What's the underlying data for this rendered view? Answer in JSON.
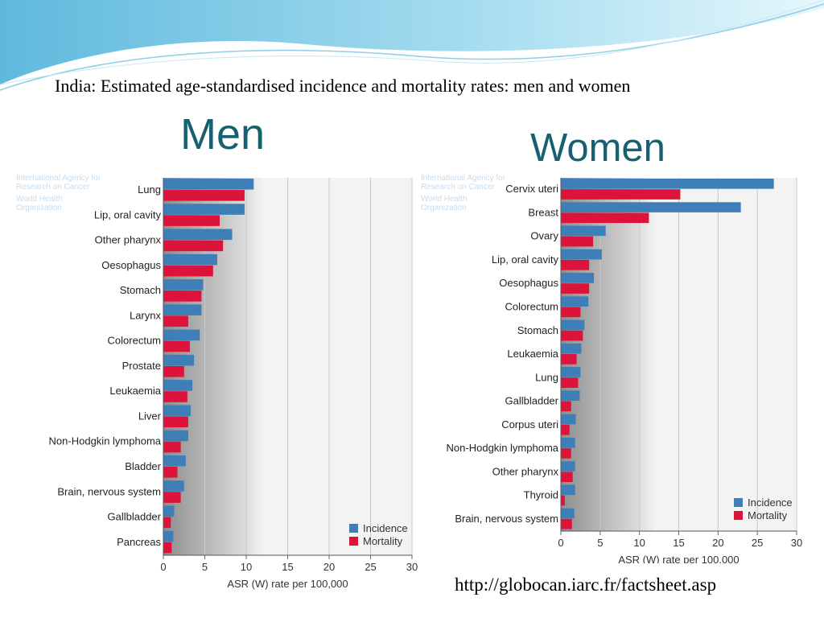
{
  "slide": {
    "title": "India: Estimated age-standardised incidence and mortality rates: men and women",
    "men_heading": "Men",
    "women_heading": "Women",
    "source_url": "http://globocan.iarc.fr/factsheet.asp",
    "watermark_text": [
      "International Agency for Research on Cancer",
      "World Health Organization"
    ]
  },
  "colors": {
    "incidence": "#3f7fb8",
    "mortality": "#dc143c",
    "heading": "#17606f"
  },
  "chart_data": [
    {
      "type": "bar",
      "orientation": "horizontal",
      "xlabel": "ASR (W) rate per 100,000",
      "xlim": [
        0,
        30
      ],
      "xticks": [
        "0",
        "5",
        "10",
        "15",
        "20",
        "25",
        "30"
      ],
      "grid": true,
      "legend": "bottom-right",
      "categories": [
        "Lung",
        "Lip, oral cavity",
        "Other pharynx",
        "Oesophagus",
        "Stomach",
        "Larynx",
        "Colorectum",
        "Prostate",
        "Leukaemia",
        "Liver",
        "Non-Hodgkin lymphoma",
        "Bladder",
        "Brain, nervous system",
        "Gallbladder",
        "Pancreas"
      ],
      "series": [
        {
          "name": "Incidence",
          "values": [
            10.9,
            9.8,
            8.3,
            6.5,
            4.8,
            4.6,
            4.4,
            3.7,
            3.5,
            3.3,
            3.0,
            2.7,
            2.5,
            1.3,
            1.2
          ]
        },
        {
          "name": "Mortality",
          "values": [
            9.8,
            6.8,
            7.2,
            6.0,
            4.6,
            3.0,
            3.2,
            2.5,
            2.9,
            3.0,
            2.1,
            1.7,
            2.1,
            0.9,
            1.0
          ]
        }
      ]
    },
    {
      "type": "bar",
      "orientation": "horizontal",
      "xlabel": "ASR (W) rate per 100,000",
      "xlim": [
        0,
        30
      ],
      "xticks": [
        "0",
        "5",
        "10",
        "15",
        "20",
        "25",
        "30"
      ],
      "grid": true,
      "legend": "bottom-right",
      "categories": [
        "Cervix uteri",
        "Breast",
        "Ovary",
        "Lip, oral cavity",
        "Oesophagus",
        "Colorectum",
        "Stomach",
        "Leukaemia",
        "Lung",
        "Gallbladder",
        "Corpus uteri",
        "Non-Hodgkin lymphoma",
        "Other pharynx",
        "Thyroid",
        "Brain, nervous system"
      ],
      "series": [
        {
          "name": "Incidence",
          "values": [
            27.1,
            22.9,
            5.7,
            5.2,
            4.2,
            3.5,
            3.0,
            2.6,
            2.5,
            2.4,
            1.9,
            1.8,
            1.8,
            1.8,
            1.7
          ]
        },
        {
          "name": "Mortality",
          "values": [
            15.2,
            11.2,
            4.1,
            3.6,
            3.6,
            2.5,
            2.8,
            2.0,
            2.2,
            1.3,
            1.1,
            1.3,
            1.5,
            0.5,
            1.4
          ]
        }
      ]
    }
  ]
}
